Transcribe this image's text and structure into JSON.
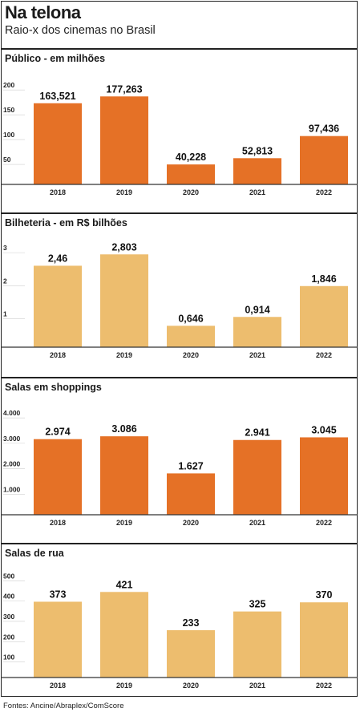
{
  "header": {
    "title": "Na telona",
    "subtitle": "Raio-x dos cinemas no Brasil"
  },
  "colors": {
    "orange": "#E57126",
    "sand": "#EDBD6E"
  },
  "source": "Fontes: Ancine/Abraplex/ComScore",
  "chart_data": [
    {
      "type": "bar",
      "title": "Público - em milhões",
      "categories": [
        "2018",
        "2019",
        "2020",
        "2021",
        "2022"
      ],
      "values": [
        163.521,
        177.263,
        40.228,
        52.813,
        97.436
      ],
      "value_labels": [
        "163,521",
        "177,263",
        "40,228",
        "52,813",
        "97,436"
      ],
      "yticks": [
        50,
        100,
        150,
        200
      ],
      "ytick_labels": [
        "50",
        "100",
        "150",
        "200"
      ],
      "ylim": [
        0,
        210
      ],
      "color": "#E57126"
    },
    {
      "type": "bar",
      "title": "Bilheteria - em R$ bilhões",
      "categories": [
        "2018",
        "2019",
        "2020",
        "2021",
        "2022"
      ],
      "values": [
        2.46,
        2.803,
        0.646,
        0.914,
        1.846
      ],
      "value_labels": [
        "2,46",
        "2,803",
        "0,646",
        "0,914",
        "1,846"
      ],
      "yticks": [
        1,
        2,
        3
      ],
      "ytick_labels": [
        "1",
        "2",
        "3"
      ],
      "ylim": [
        0,
        3.1
      ],
      "color": "#EDBD6E"
    },
    {
      "type": "bar",
      "title": "Salas em shoppings",
      "categories": [
        "2018",
        "2019",
        "2020",
        "2021",
        "2022"
      ],
      "values": [
        2974,
        3086,
        1627,
        2941,
        3045
      ],
      "value_labels": [
        "2.974",
        "3.086",
        "1.627",
        "2.941",
        "3.045"
      ],
      "yticks": [
        1000,
        2000,
        3000,
        4000
      ],
      "ytick_labels": [
        "1.000",
        "2.000",
        "3.000",
        "4.000"
      ],
      "ylim": [
        0,
        4100
      ],
      "color": "#E57126"
    },
    {
      "type": "bar",
      "title": "Salas de rua",
      "categories": [
        "2018",
        "2019",
        "2020",
        "2021",
        "2022"
      ],
      "values": [
        373,
        421,
        233,
        325,
        370
      ],
      "value_labels": [
        "373",
        "421",
        "233",
        "325",
        "370"
      ],
      "yticks": [
        100,
        200,
        300,
        400,
        500
      ],
      "ytick_labels": [
        "100",
        "200",
        "300",
        "400",
        "500"
      ],
      "ylim": [
        0,
        505
      ],
      "color": "#EDBD6E"
    }
  ]
}
